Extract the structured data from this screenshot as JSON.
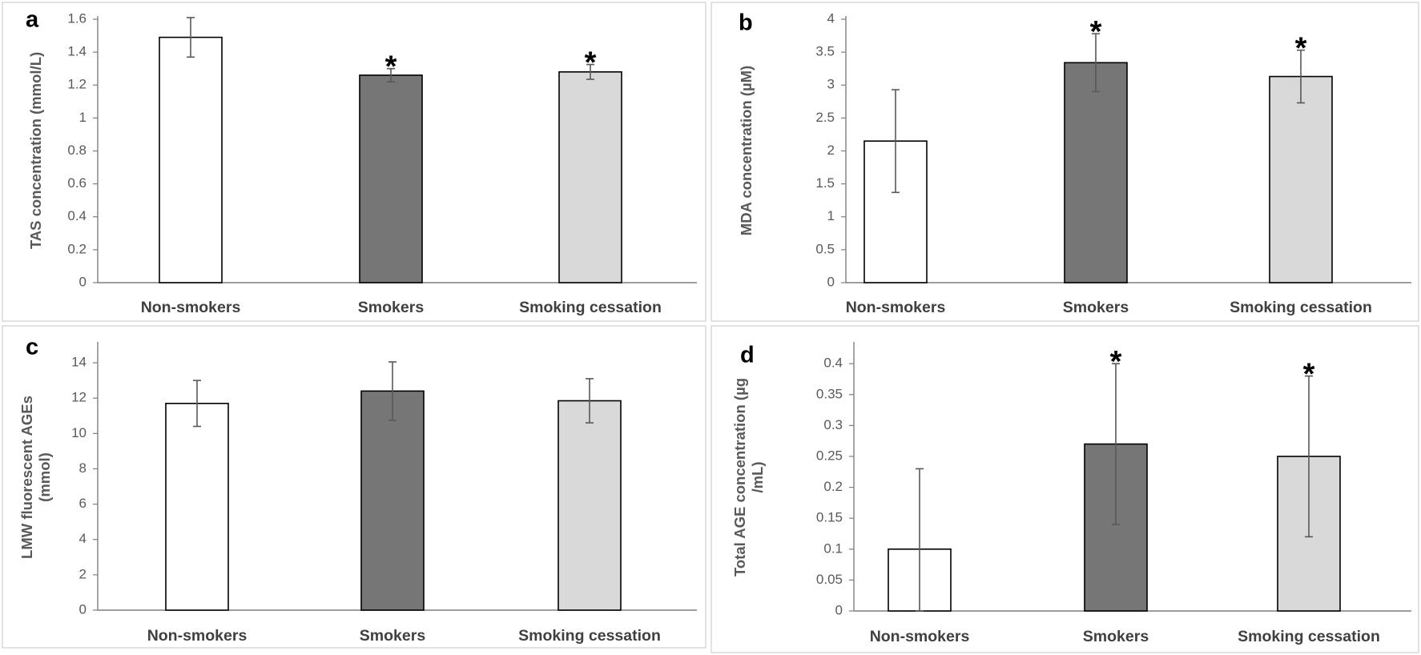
{
  "figure": {
    "layout": "2x2 grid"
  },
  "chart_data": [
    {
      "id": "a",
      "panel_label": "a",
      "type": "bar",
      "categories": [
        "Non-smokers",
        "Smokers",
        "Smoking cessation"
      ],
      "values": [
        1.49,
        1.26,
        1.28
      ],
      "errors": [
        0.12,
        0.04,
        0.045
      ],
      "significant": [
        false,
        true,
        true
      ],
      "significance_marker": "*",
      "bar_colors": [
        "#ffffff",
        "#767676",
        "#d9d9d9"
      ],
      "ylabel": "TAS concentration  (mmol/L)",
      "ylabel_lines": [
        "TAS concentration  (mmol/L)"
      ],
      "ylim": [
        0,
        1.6
      ],
      "yticks": [
        0,
        0.2,
        0.4,
        0.6,
        0.8,
        1,
        1.2,
        1.4,
        1.6
      ],
      "ytick_labels": [
        "0",
        "0.2",
        "0.4",
        "0.6",
        "0.8",
        "1",
        "1.2",
        "1.4",
        "1.6"
      ]
    },
    {
      "id": "b",
      "panel_label": "b",
      "type": "bar",
      "categories": [
        "Non-smokers",
        "Smokers",
        "Smoking cessation"
      ],
      "values": [
        2.15,
        3.34,
        3.13
      ],
      "errors": [
        0.78,
        0.44,
        0.4
      ],
      "significant": [
        false,
        true,
        true
      ],
      "significance_marker": "*",
      "bar_colors": [
        "#ffffff",
        "#767676",
        "#d9d9d9"
      ],
      "ylabel": "MDA concentration (µM)",
      "ylabel_lines": [
        "MDA concentration (µM)"
      ],
      "ylim": [
        0,
        4
      ],
      "yticks": [
        0,
        0.5,
        1,
        1.5,
        2,
        2.5,
        3,
        3.5,
        4
      ],
      "ytick_labels": [
        "0",
        "0.5",
        "1",
        "1.5",
        "2",
        "2.5",
        "3",
        "3.5",
        "4"
      ]
    },
    {
      "id": "c",
      "panel_label": "c",
      "type": "bar",
      "categories": [
        "Non-smokers",
        "Smokers",
        "Smoking cessation"
      ],
      "values": [
        11.7,
        12.4,
        11.85
      ],
      "errors": [
        1.3,
        1.65,
        1.25
      ],
      "significant": [
        false,
        false,
        false
      ],
      "significance_marker": "*",
      "bar_colors": [
        "#ffffff",
        "#767676",
        "#d9d9d9"
      ],
      "ylabel": "LMW fluorescent AGEs (mmol)",
      "ylabel_lines": [
        "LMW fluorescent AGEs",
        "(mmol)"
      ],
      "ylim": [
        0,
        15
      ],
      "yticks": [
        0,
        2,
        4,
        6,
        8,
        10,
        12,
        14
      ],
      "ytick_labels": [
        "0",
        "2",
        "4",
        "6",
        "8",
        "10",
        "12",
        "14"
      ]
    },
    {
      "id": "d",
      "panel_label": "d",
      "type": "bar",
      "categories": [
        "Non-smokers",
        "Smokers",
        "Smoking cessation"
      ],
      "values": [
        0.1,
        0.27,
        0.25
      ],
      "errors": [
        0.13,
        0.13,
        0.13
      ],
      "significant": [
        false,
        true,
        true
      ],
      "significance_marker": "*",
      "bar_colors": [
        "#ffffff",
        "#767676",
        "#d9d9d9"
      ],
      "ylabel": "Total AGE concentration (µg /mL)",
      "ylabel_lines": [
        "Total AGE concentration (µg",
        "/mL)"
      ],
      "ylim": [
        0,
        0.43
      ],
      "yticks": [
        0,
        0.05,
        0.1,
        0.15,
        0.2,
        0.25,
        0.3,
        0.35,
        0.4
      ],
      "ytick_labels": [
        "0",
        "0.05",
        "0.1",
        "0.15",
        "0.2",
        "0.25",
        "0.3",
        "0.35",
        "0.4"
      ]
    }
  ]
}
